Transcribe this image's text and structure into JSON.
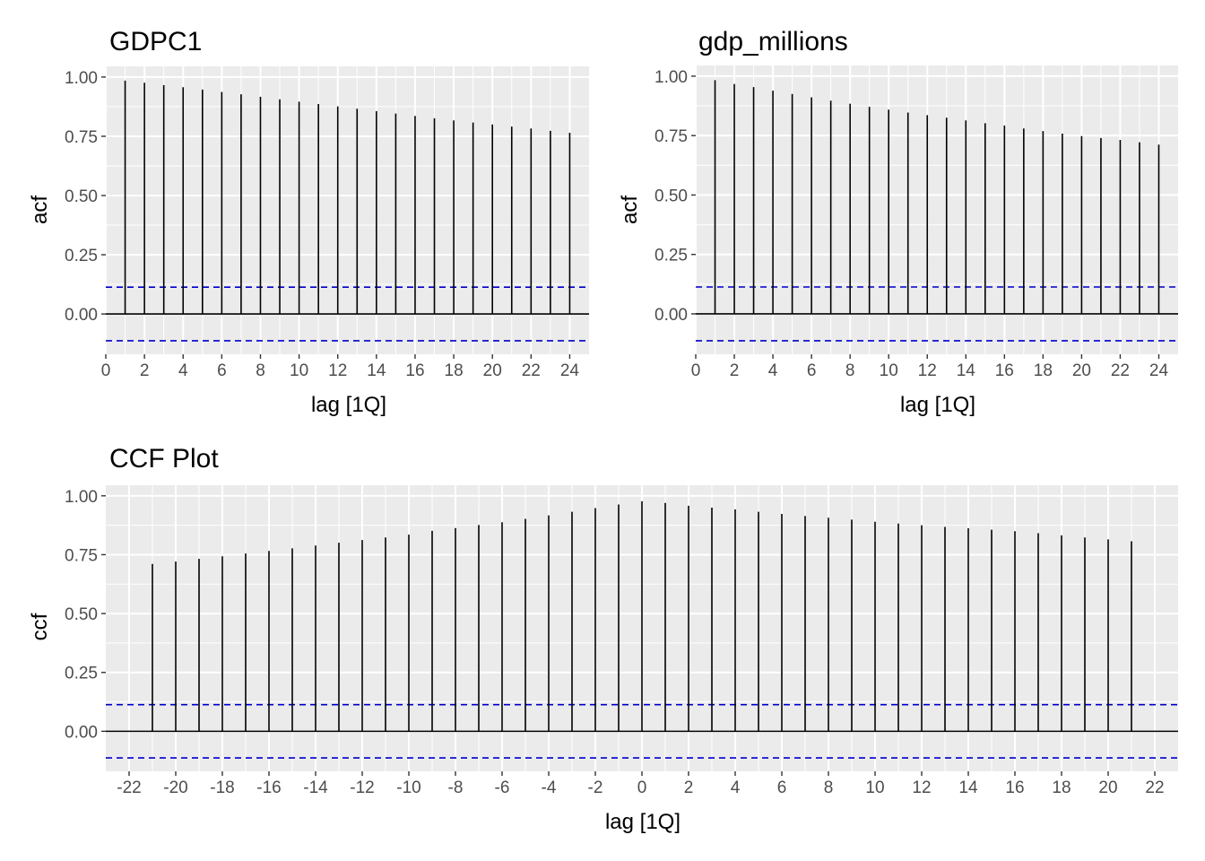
{
  "chart_data": [
    {
      "type": "bar",
      "title": "GDPC1",
      "xlabel": "lag [1Q]",
      "ylabel": "acf",
      "x": [
        1,
        2,
        3,
        4,
        5,
        6,
        7,
        8,
        9,
        10,
        11,
        12,
        13,
        14,
        15,
        16,
        17,
        18,
        19,
        20,
        21,
        22,
        23,
        24
      ],
      "values": [
        0.985,
        0.976,
        0.966,
        0.957,
        0.947,
        0.937,
        0.927,
        0.917,
        0.906,
        0.896,
        0.886,
        0.876,
        0.866,
        0.856,
        0.846,
        0.836,
        0.826,
        0.817,
        0.808,
        0.8,
        0.791,
        0.783,
        0.773,
        0.765
      ],
      "conf_bound": 0.113,
      "xlim": [
        0,
        25
      ],
      "ylim": [
        -0.17,
        1.045
      ],
      "xticks": [
        0,
        2,
        4,
        6,
        8,
        10,
        12,
        14,
        16,
        18,
        20,
        22,
        24
      ],
      "yticks": [
        0.0,
        0.25,
        0.5,
        0.75,
        1.0
      ],
      "ytick_labels": [
        "0.00",
        "0.25",
        "0.50",
        "0.75",
        "1.00"
      ],
      "grid": true,
      "colors": {
        "bar": "#000000",
        "bound": "#0000cc",
        "panel": "#ebebeb",
        "grid": "#ffffff"
      }
    },
    {
      "type": "bar",
      "title": "gdp_millions",
      "xlabel": "lag [1Q]",
      "ylabel": "acf",
      "x": [
        1,
        2,
        3,
        4,
        5,
        6,
        7,
        8,
        9,
        10,
        11,
        12,
        13,
        14,
        15,
        16,
        17,
        18,
        19,
        20,
        21,
        22,
        23,
        24
      ],
      "values": [
        0.983,
        0.967,
        0.954,
        0.939,
        0.925,
        0.911,
        0.897,
        0.884,
        0.871,
        0.859,
        0.847,
        0.836,
        0.825,
        0.814,
        0.802,
        0.792,
        0.78,
        0.769,
        0.758,
        0.748,
        0.74,
        0.732,
        0.722,
        0.712
      ],
      "conf_bound": 0.113,
      "xlim": [
        0,
        25
      ],
      "ylim": [
        -0.17,
        1.045
      ],
      "xticks": [
        0,
        2,
        4,
        6,
        8,
        10,
        12,
        14,
        16,
        18,
        20,
        22,
        24
      ],
      "yticks": [
        0.0,
        0.25,
        0.5,
        0.75,
        1.0
      ],
      "ytick_labels": [
        "0.00",
        "0.25",
        "0.50",
        "0.75",
        "1.00"
      ],
      "grid": true,
      "colors": {
        "bar": "#000000",
        "bound": "#0000cc",
        "panel": "#ebebeb",
        "grid": "#ffffff"
      }
    },
    {
      "type": "bar",
      "title": "CCF Plot",
      "xlabel": "lag [1Q]",
      "ylabel": "ccf",
      "x": [
        -21,
        -20,
        -19,
        -18,
        -17,
        -16,
        -15,
        -14,
        -13,
        -12,
        -11,
        -10,
        -9,
        -8,
        -7,
        -6,
        -5,
        -4,
        -3,
        -2,
        -1,
        0,
        1,
        2,
        3,
        4,
        5,
        6,
        7,
        8,
        9,
        10,
        11,
        12,
        13,
        14,
        15,
        16,
        17,
        18,
        19,
        20,
        21
      ],
      "values": [
        0.711,
        0.721,
        0.732,
        0.743,
        0.755,
        0.766,
        0.777,
        0.789,
        0.801,
        0.812,
        0.823,
        0.835,
        0.851,
        0.863,
        0.876,
        0.888,
        0.902,
        0.917,
        0.932,
        0.948,
        0.963,
        0.977,
        0.97,
        0.958,
        0.95,
        0.942,
        0.932,
        0.923,
        0.914,
        0.907,
        0.899,
        0.89,
        0.882,
        0.875,
        0.868,
        0.862,
        0.856,
        0.85,
        0.841,
        0.832,
        0.823,
        0.815,
        0.807
      ],
      "conf_bound": 0.113,
      "xlim": [
        -23,
        23
      ],
      "ylim": [
        -0.17,
        1.045
      ],
      "xticks": [
        -22,
        -20,
        -18,
        -16,
        -14,
        -12,
        -10,
        -8,
        -6,
        -4,
        -2,
        0,
        2,
        4,
        6,
        8,
        10,
        12,
        14,
        16,
        18,
        20,
        22
      ],
      "yticks": [
        0.0,
        0.25,
        0.5,
        0.75,
        1.0
      ],
      "ytick_labels": [
        "0.00",
        "0.25",
        "0.50",
        "0.75",
        "1.00"
      ],
      "grid": true,
      "colors": {
        "bar": "#000000",
        "bound": "#0000cc",
        "panel": "#ebebeb",
        "grid": "#ffffff"
      }
    }
  ]
}
